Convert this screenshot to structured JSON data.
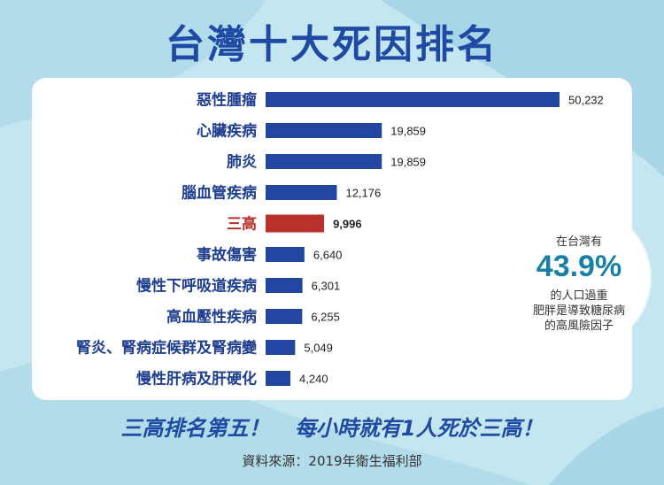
{
  "title": "台灣十大死因排名",
  "colors": {
    "bar": "#2347a1",
    "highlight": "#b9312b",
    "title": "#1e4aa3",
    "accent": "#1a7fa5",
    "background": "#c4e6f1"
  },
  "chart_data": {
    "type": "bar",
    "orientation": "horizontal",
    "categories": [
      "惡性腫瘤",
      "心臟疾病",
      "肺炎",
      "腦血管疾病",
      "三高",
      "事故傷害",
      "慢性下呼吸道疾病",
      "高血壓性疾病",
      "腎炎、腎病症候群及腎病變",
      "慢性肝病及肝硬化"
    ],
    "values": [
      50232,
      19859,
      19859,
      12176,
      9996,
      6640,
      6301,
      6255,
      5049,
      4240
    ],
    "value_labels": [
      "50,232",
      "19,859",
      "19,859",
      "12,176",
      "9,996",
      "6,640",
      "6,301",
      "6,255",
      "5,049",
      "4,240"
    ],
    "highlight_category": "三高",
    "xlim": [
      0,
      50232
    ],
    "grid": false
  },
  "callout": {
    "top": "在台灣有",
    "value": "43.9%",
    "lines": [
      "的人口過重",
      "肥胖是導致糖尿病",
      "的高風險因子"
    ]
  },
  "headline": {
    "part1": "三高排名第五！",
    "part2": "每小時就有1人死於三高！"
  },
  "source": "資料來源：2019年衛生福利部"
}
